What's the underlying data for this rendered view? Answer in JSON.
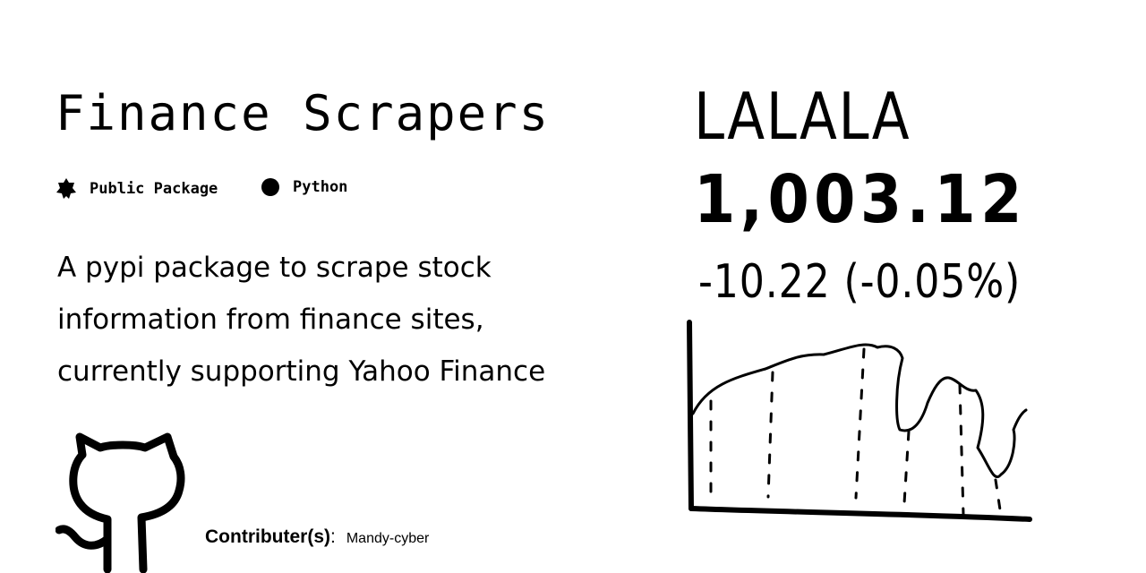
{
  "title": "Finance Scrapers",
  "badges": [
    {
      "label": "Public Package",
      "icon": "star-badge-icon"
    },
    {
      "label": "Python",
      "icon": "dot-icon"
    }
  ],
  "description_lines": [
    "A pypi package to scrape stock",
    "information from finance sites,",
    "currently supporting Yahoo Finance"
  ],
  "contributors": {
    "label": "Contributer(s)",
    "colon": ":",
    "names": "Mandy-cyber"
  },
  "sketch": {
    "ticker": "LALALA",
    "price": "1,003.12",
    "change": "-10.22 (-0.05%)"
  },
  "colors": {
    "ink": "#000000",
    "background": "#ffffff"
  }
}
